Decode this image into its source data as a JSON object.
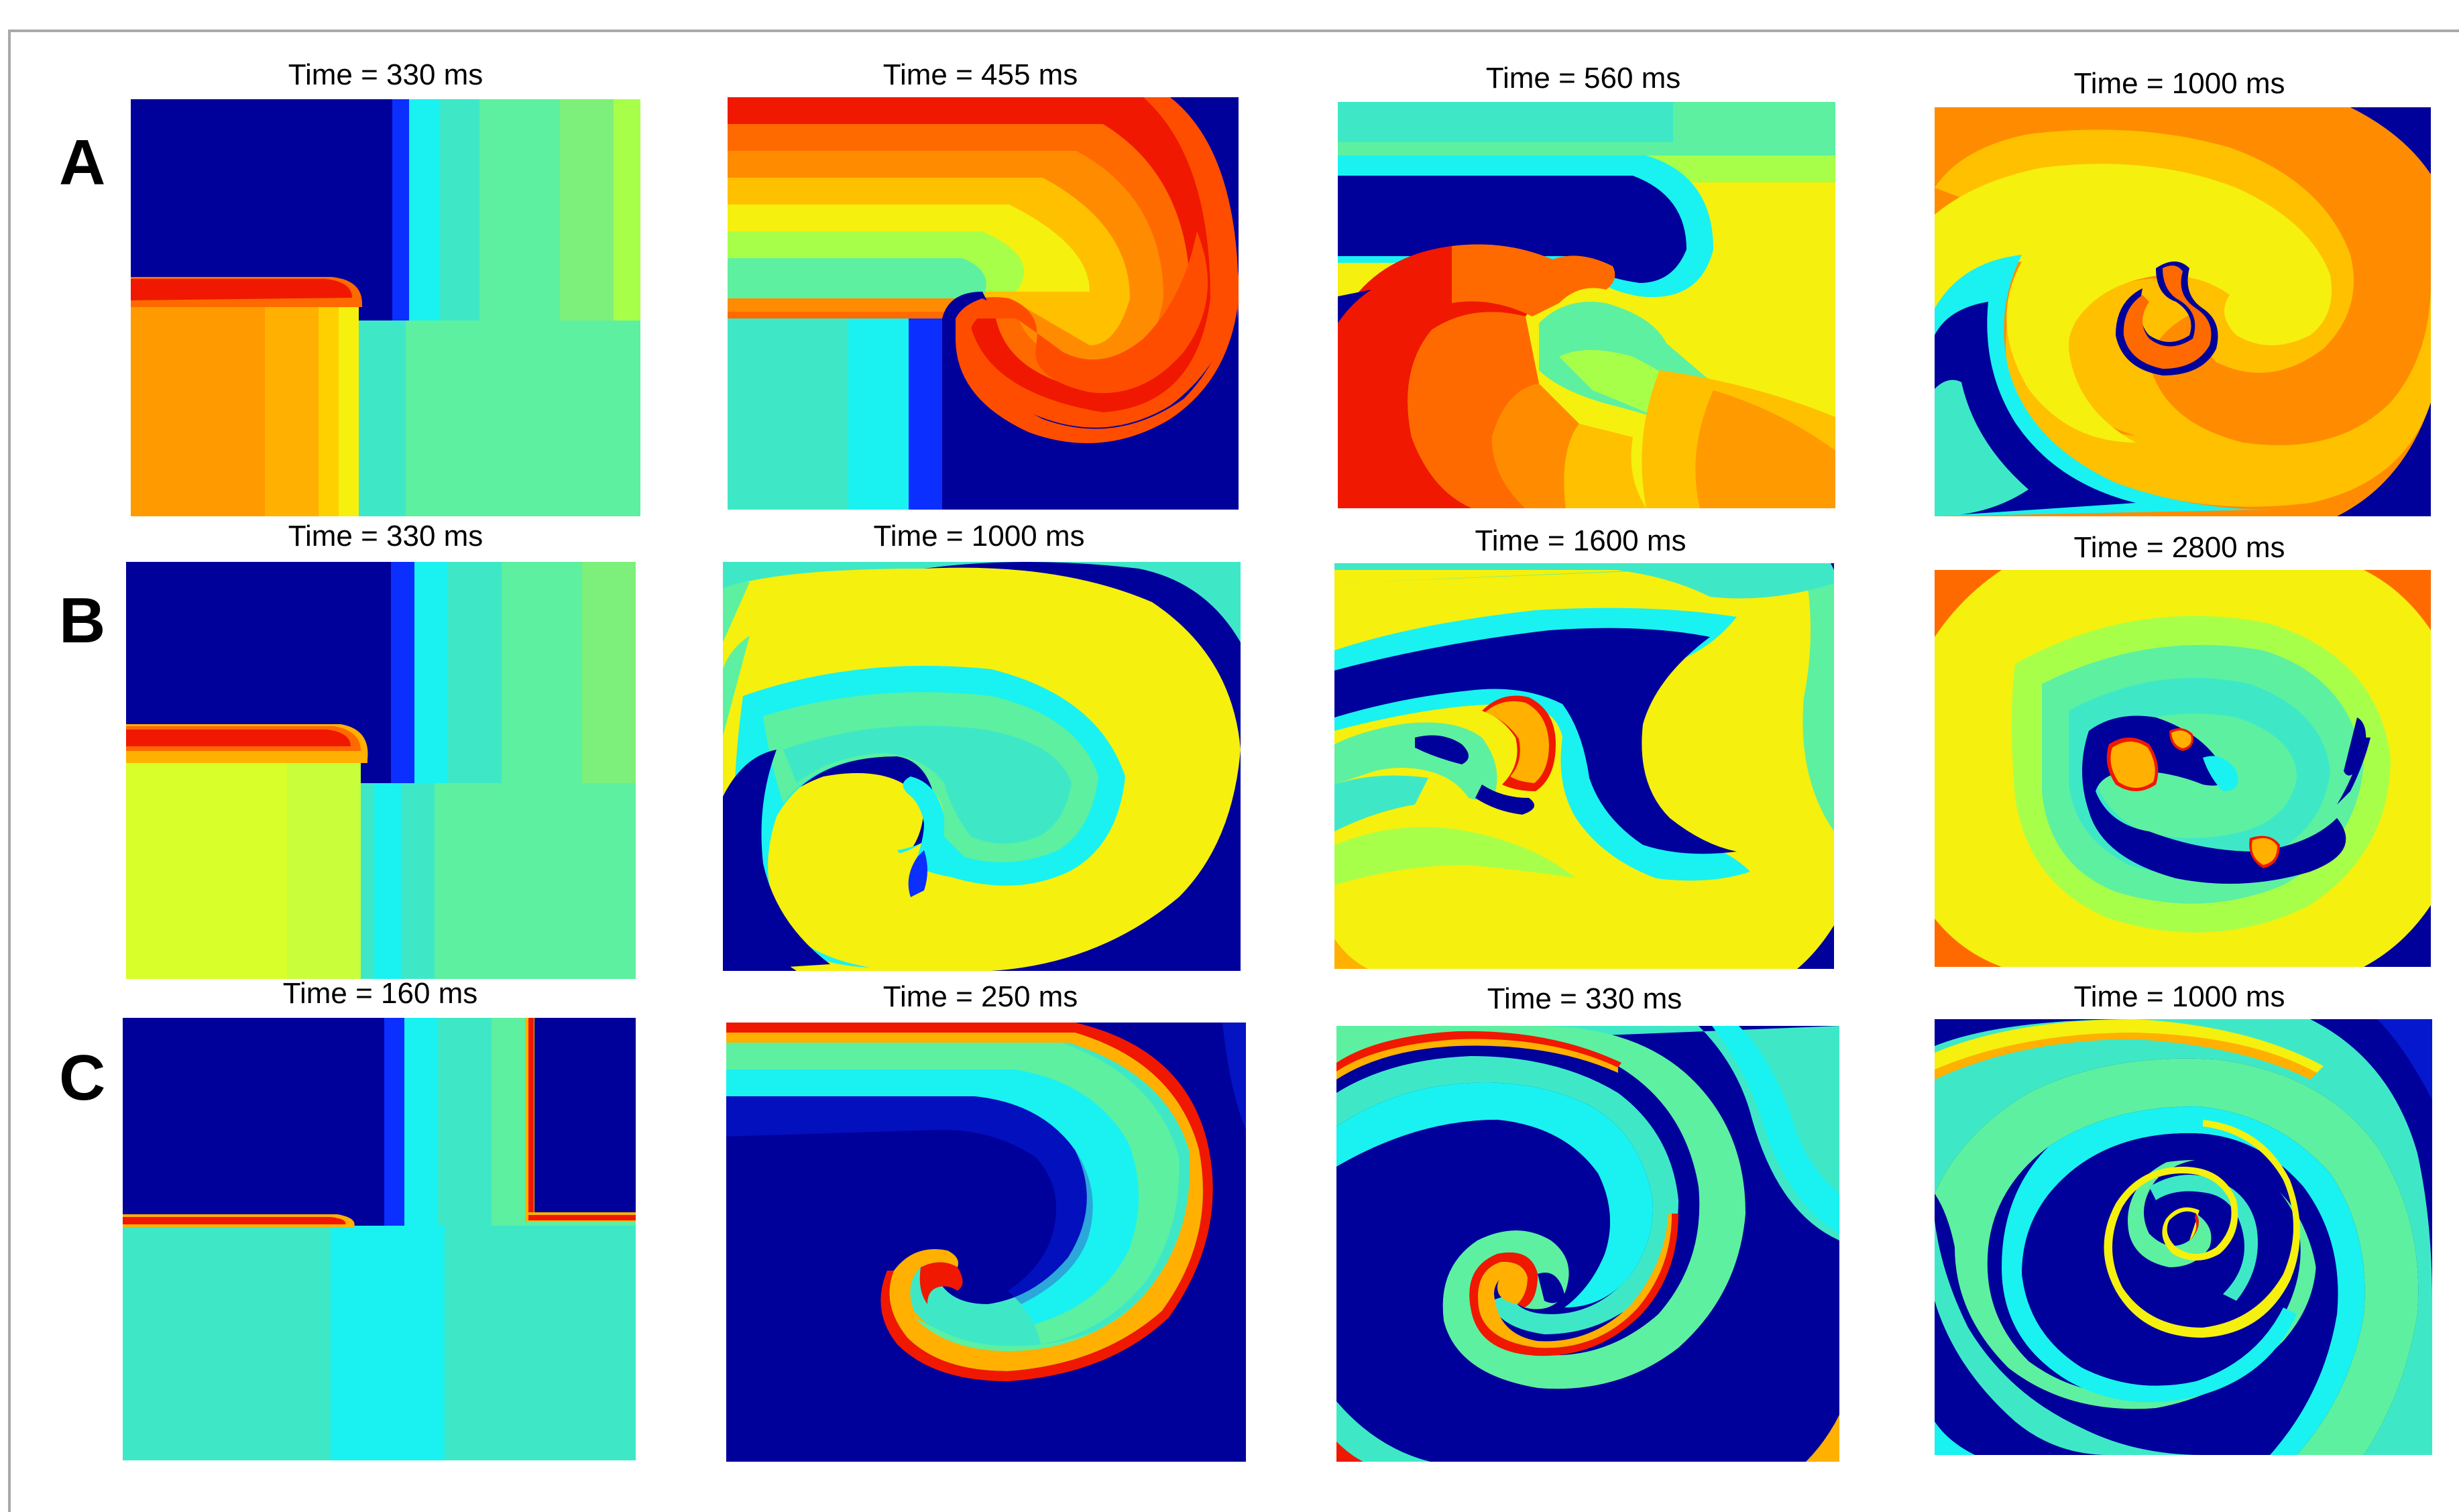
{
  "rows": [
    {
      "label": "A",
      "panels": [
        {
          "title": "Time = 330 ms"
        },
        {
          "title": "Time = 455 ms"
        },
        {
          "title": "Time = 560 ms"
        },
        {
          "title": "Time = 1000 ms"
        }
      ]
    },
    {
      "label": "B",
      "panels": [
        {
          "title": "Time = 330 ms"
        },
        {
          "title": "Time = 1000 ms"
        },
        {
          "title": "Time = 1600 ms"
        },
        {
          "title": "Time = 2800 ms"
        }
      ]
    },
    {
      "label": "C",
      "panels": [
        {
          "title": "Time = 160 ms"
        },
        {
          "title": "Time = 250 ms"
        },
        {
          "title": "Time = 330 ms"
        },
        {
          "title": "Time = 1000 ms"
        }
      ]
    }
  ],
  "colormap": {
    "dark_blue": "#00009b",
    "blue": "#0a2fff",
    "cyan": "#19f2f0",
    "aqua": "#3ee8c7",
    "green_aqua": "#5df0a0",
    "light_green": "#a8ff4a",
    "yellow": "#f5f00e",
    "orange_yellow": "#ffc000",
    "orange": "#ff8c00",
    "red_orange": "#ff4d00",
    "red": "#f01800"
  }
}
